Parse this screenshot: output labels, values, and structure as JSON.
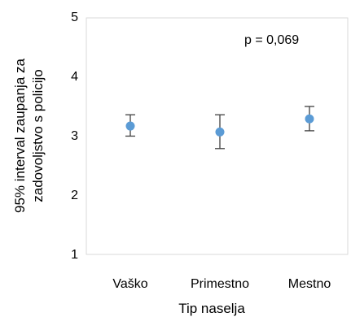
{
  "chart_data": {
    "type": "scatter",
    "categories": [
      "Vaško",
      "Primestno",
      "Mestno"
    ],
    "series": [
      {
        "values": [
          3.15,
          3.05,
          3.27
        ],
        "lower": [
          2.98,
          2.77,
          3.07
        ],
        "upper": [
          3.34,
          3.34,
          3.48
        ]
      }
    ],
    "title": "",
    "xlabel": "Tip naselja",
    "ylabel_lines": [
      "95% interval zaupanja za",
      "zadovoljstvo s policijo"
    ],
    "ylim": [
      1,
      5
    ],
    "yticks": [
      1,
      2,
      3,
      4,
      5
    ],
    "annotation": "p = 0,069",
    "grid": false,
    "error_bars": true,
    "colors": {
      "marker": "#5b9bd5",
      "error_bar": "#404040",
      "frame": "#d9d9d9"
    }
  }
}
